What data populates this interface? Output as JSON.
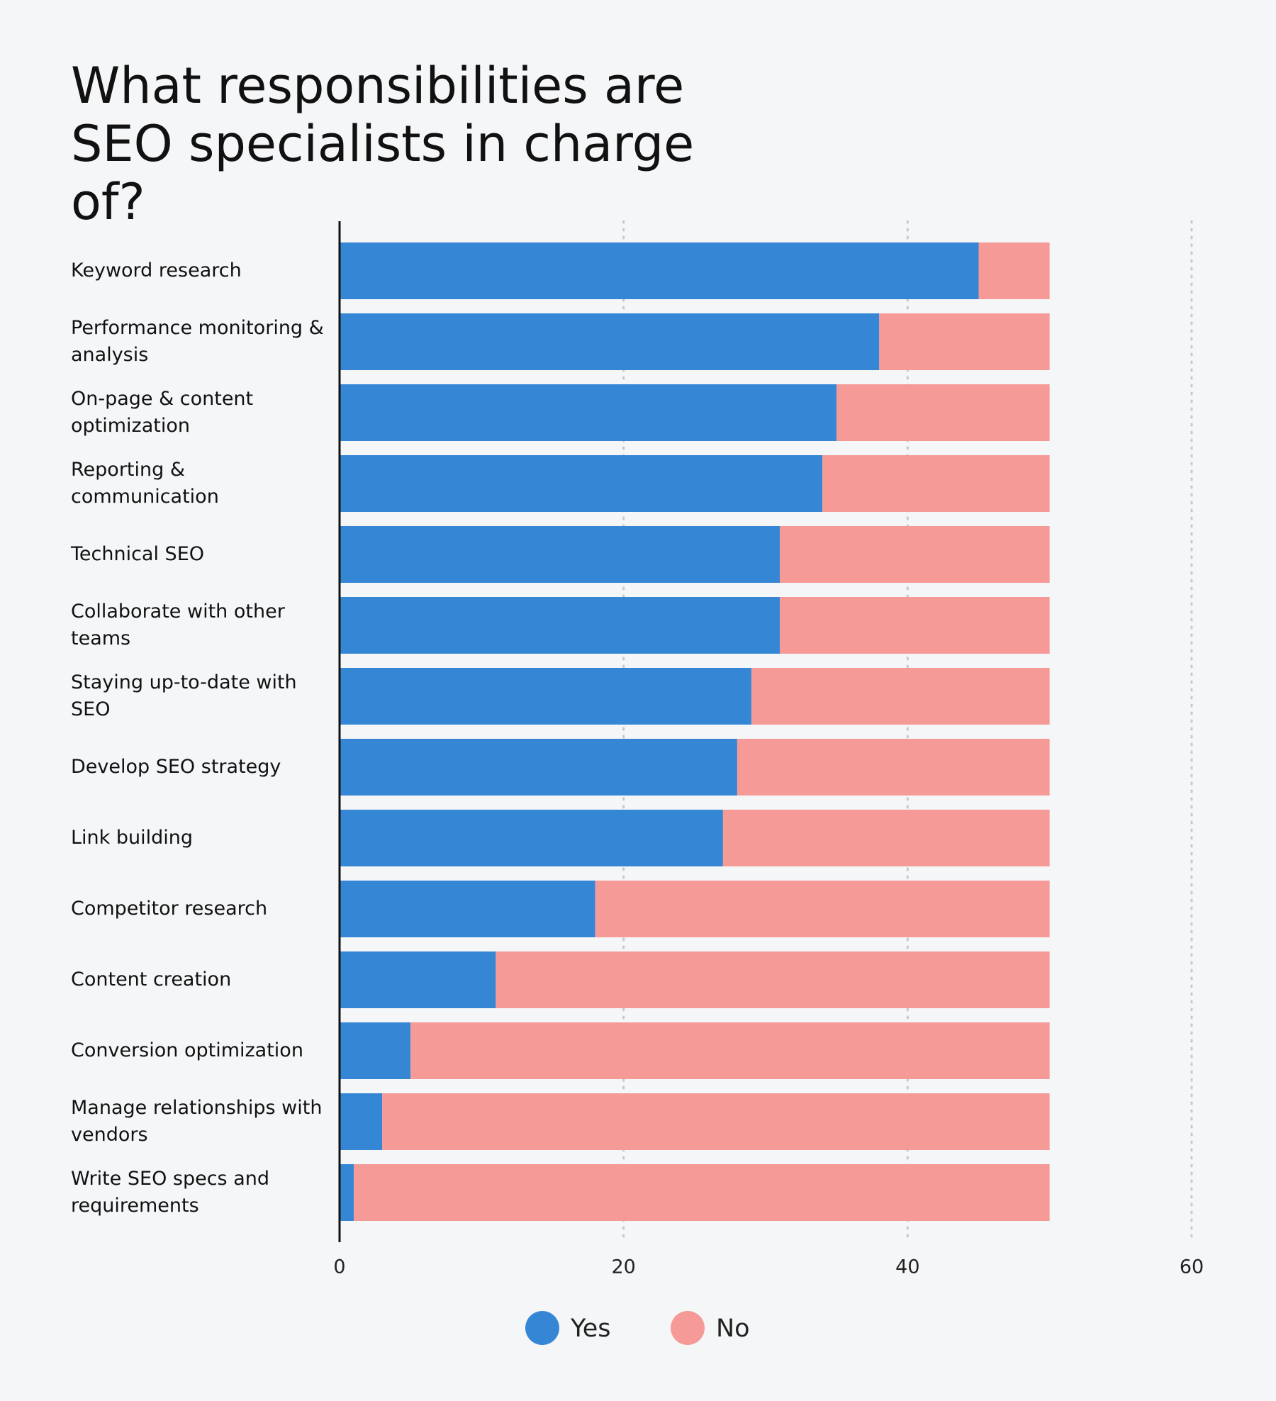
{
  "chart_data": {
    "type": "stacked-bar-horizontal",
    "title": "What responsibilities are SEO specialists in charge of?",
    "categories": [
      "Keyword research",
      "Performance monitoring & analysis",
      "On-page & content optimization",
      "Reporting & communication",
      "Technical SEO",
      "Collaborate with other teams",
      "Staying up-to-date with SEO",
      "Develop SEO strategy",
      "Link building",
      "Competitor research",
      "Content creation",
      "Conversion optimization",
      "Manage relationships with vendors",
      "Write SEO specs and requirements"
    ],
    "series": [
      {
        "name": "Yes",
        "color": "#3587d6",
        "values": [
          45,
          38,
          35,
          34,
          31,
          31,
          29,
          28,
          27,
          18,
          11,
          5,
          3,
          1
        ]
      },
      {
        "name": "No",
        "color": "#f69a98",
        "values": [
          5,
          12,
          15,
          16,
          19,
          19,
          21,
          22,
          23,
          32,
          39,
          45,
          47,
          49
        ]
      }
    ],
    "xlim": [
      0,
      60
    ],
    "xticks": [
      0,
      20,
      40,
      60
    ],
    "grid": true,
    "legend": "bottom"
  }
}
